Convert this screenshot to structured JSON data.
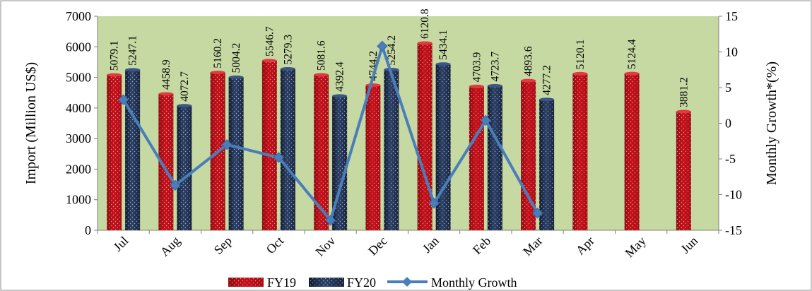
{
  "chart_data": {
    "type": "bar",
    "categories": [
      "Jul",
      "Aug",
      "Sep",
      "Oct",
      "Nov",
      "Dec",
      "Jan",
      "Feb",
      "Mar",
      "Apr",
      "May",
      "Jun"
    ],
    "series": [
      {
        "name": "FY19",
        "kind": "bar",
        "axis": "left",
        "color": "#c8101a",
        "values": [
          5079.1,
          4458.9,
          5160.2,
          5546.7,
          5081.6,
          4744.2,
          6120.8,
          4703.9,
          4893.6,
          5120.1,
          5124.4,
          3881.2
        ],
        "labels": [
          "5079.1",
          "4458.9",
          "5160.2",
          "5546.7",
          "5081.6",
          "4744.2",
          "6120.8",
          "4703.9",
          "4893.6",
          "5120.1",
          "5124.4",
          "3881.2"
        ]
      },
      {
        "name": "FY20",
        "kind": "bar",
        "axis": "left",
        "color": "#1f2f4f",
        "values": [
          5247.1,
          4072.7,
          5004.2,
          5279.3,
          4392.4,
          5254.2,
          5434.1,
          4723.7,
          4277.2,
          null,
          null,
          null
        ],
        "labels": [
          "5247.1",
          "4072.7",
          "5004.2",
          "5279.3",
          "4392.4",
          "5254.2",
          "5434.1",
          "4723.7",
          "4277.2",
          null,
          null,
          null
        ]
      },
      {
        "name": "Monthly Growth",
        "kind": "line",
        "axis": "right",
        "color": "#4a7ebb",
        "values": [
          3.3,
          -8.7,
          -3.0,
          -4.8,
          -13.6,
          10.8,
          -11.2,
          0.4,
          -12.6,
          null,
          null,
          null
        ]
      }
    ],
    "ylabel": "Import (Million US$)",
    "y2label": "Monthly Growth*(%)",
    "ylim": [
      0,
      7000
    ],
    "y2lim": [
      -15,
      15
    ],
    "yticks": [
      "0",
      "1000",
      "2000",
      "3000",
      "4000",
      "5000",
      "6000",
      "7000"
    ],
    "y2ticks": [
      "-15",
      "-10",
      "-5",
      "0",
      "5",
      "10",
      "15"
    ],
    "plot_background": "#c6d9a2",
    "grid": false,
    "legend_position": "bottom"
  }
}
